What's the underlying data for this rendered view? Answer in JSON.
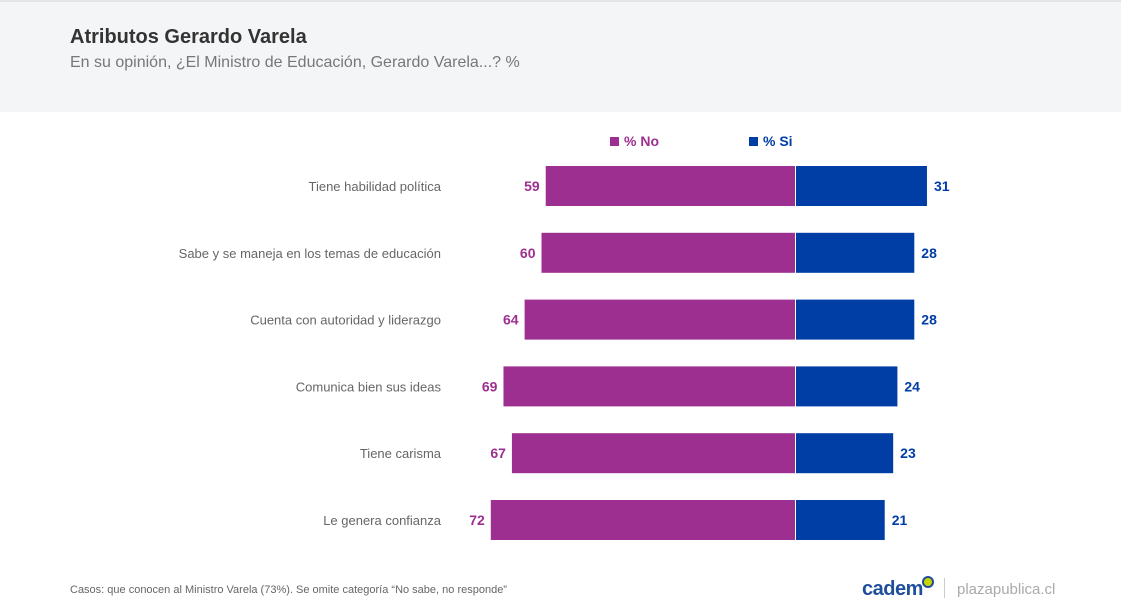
{
  "header": {
    "title": "Atributos Gerardo Varela",
    "subtitle": "En su opinión, ¿El Ministro de Educación, Gerardo Varela...? %"
  },
  "chart_data": {
    "type": "bar",
    "orientation": "horizontal-diverging",
    "categories": [
      "Tiene habilidad política",
      "Sabe y se maneja en los temas de educación",
      "Cuenta con autoridad y liderazgo",
      "Comunica bien sus ideas",
      "Tiene carisma",
      "Le genera confianza"
    ],
    "series": [
      {
        "name": "% No",
        "color": "#9c2f90",
        "values": [
          59,
          60,
          64,
          69,
          67,
          72
        ]
      },
      {
        "name": "% Si",
        "color": "#003da5",
        "values": [
          31,
          28,
          28,
          24,
          23,
          21
        ]
      }
    ],
    "legend_position": "top"
  },
  "footer": {
    "note": "Casos: que conocen al Ministro Varela (73%). Se omite categoría “No sabe, no responde”",
    "logo": "cadem",
    "site": "plazapublica.cl"
  }
}
